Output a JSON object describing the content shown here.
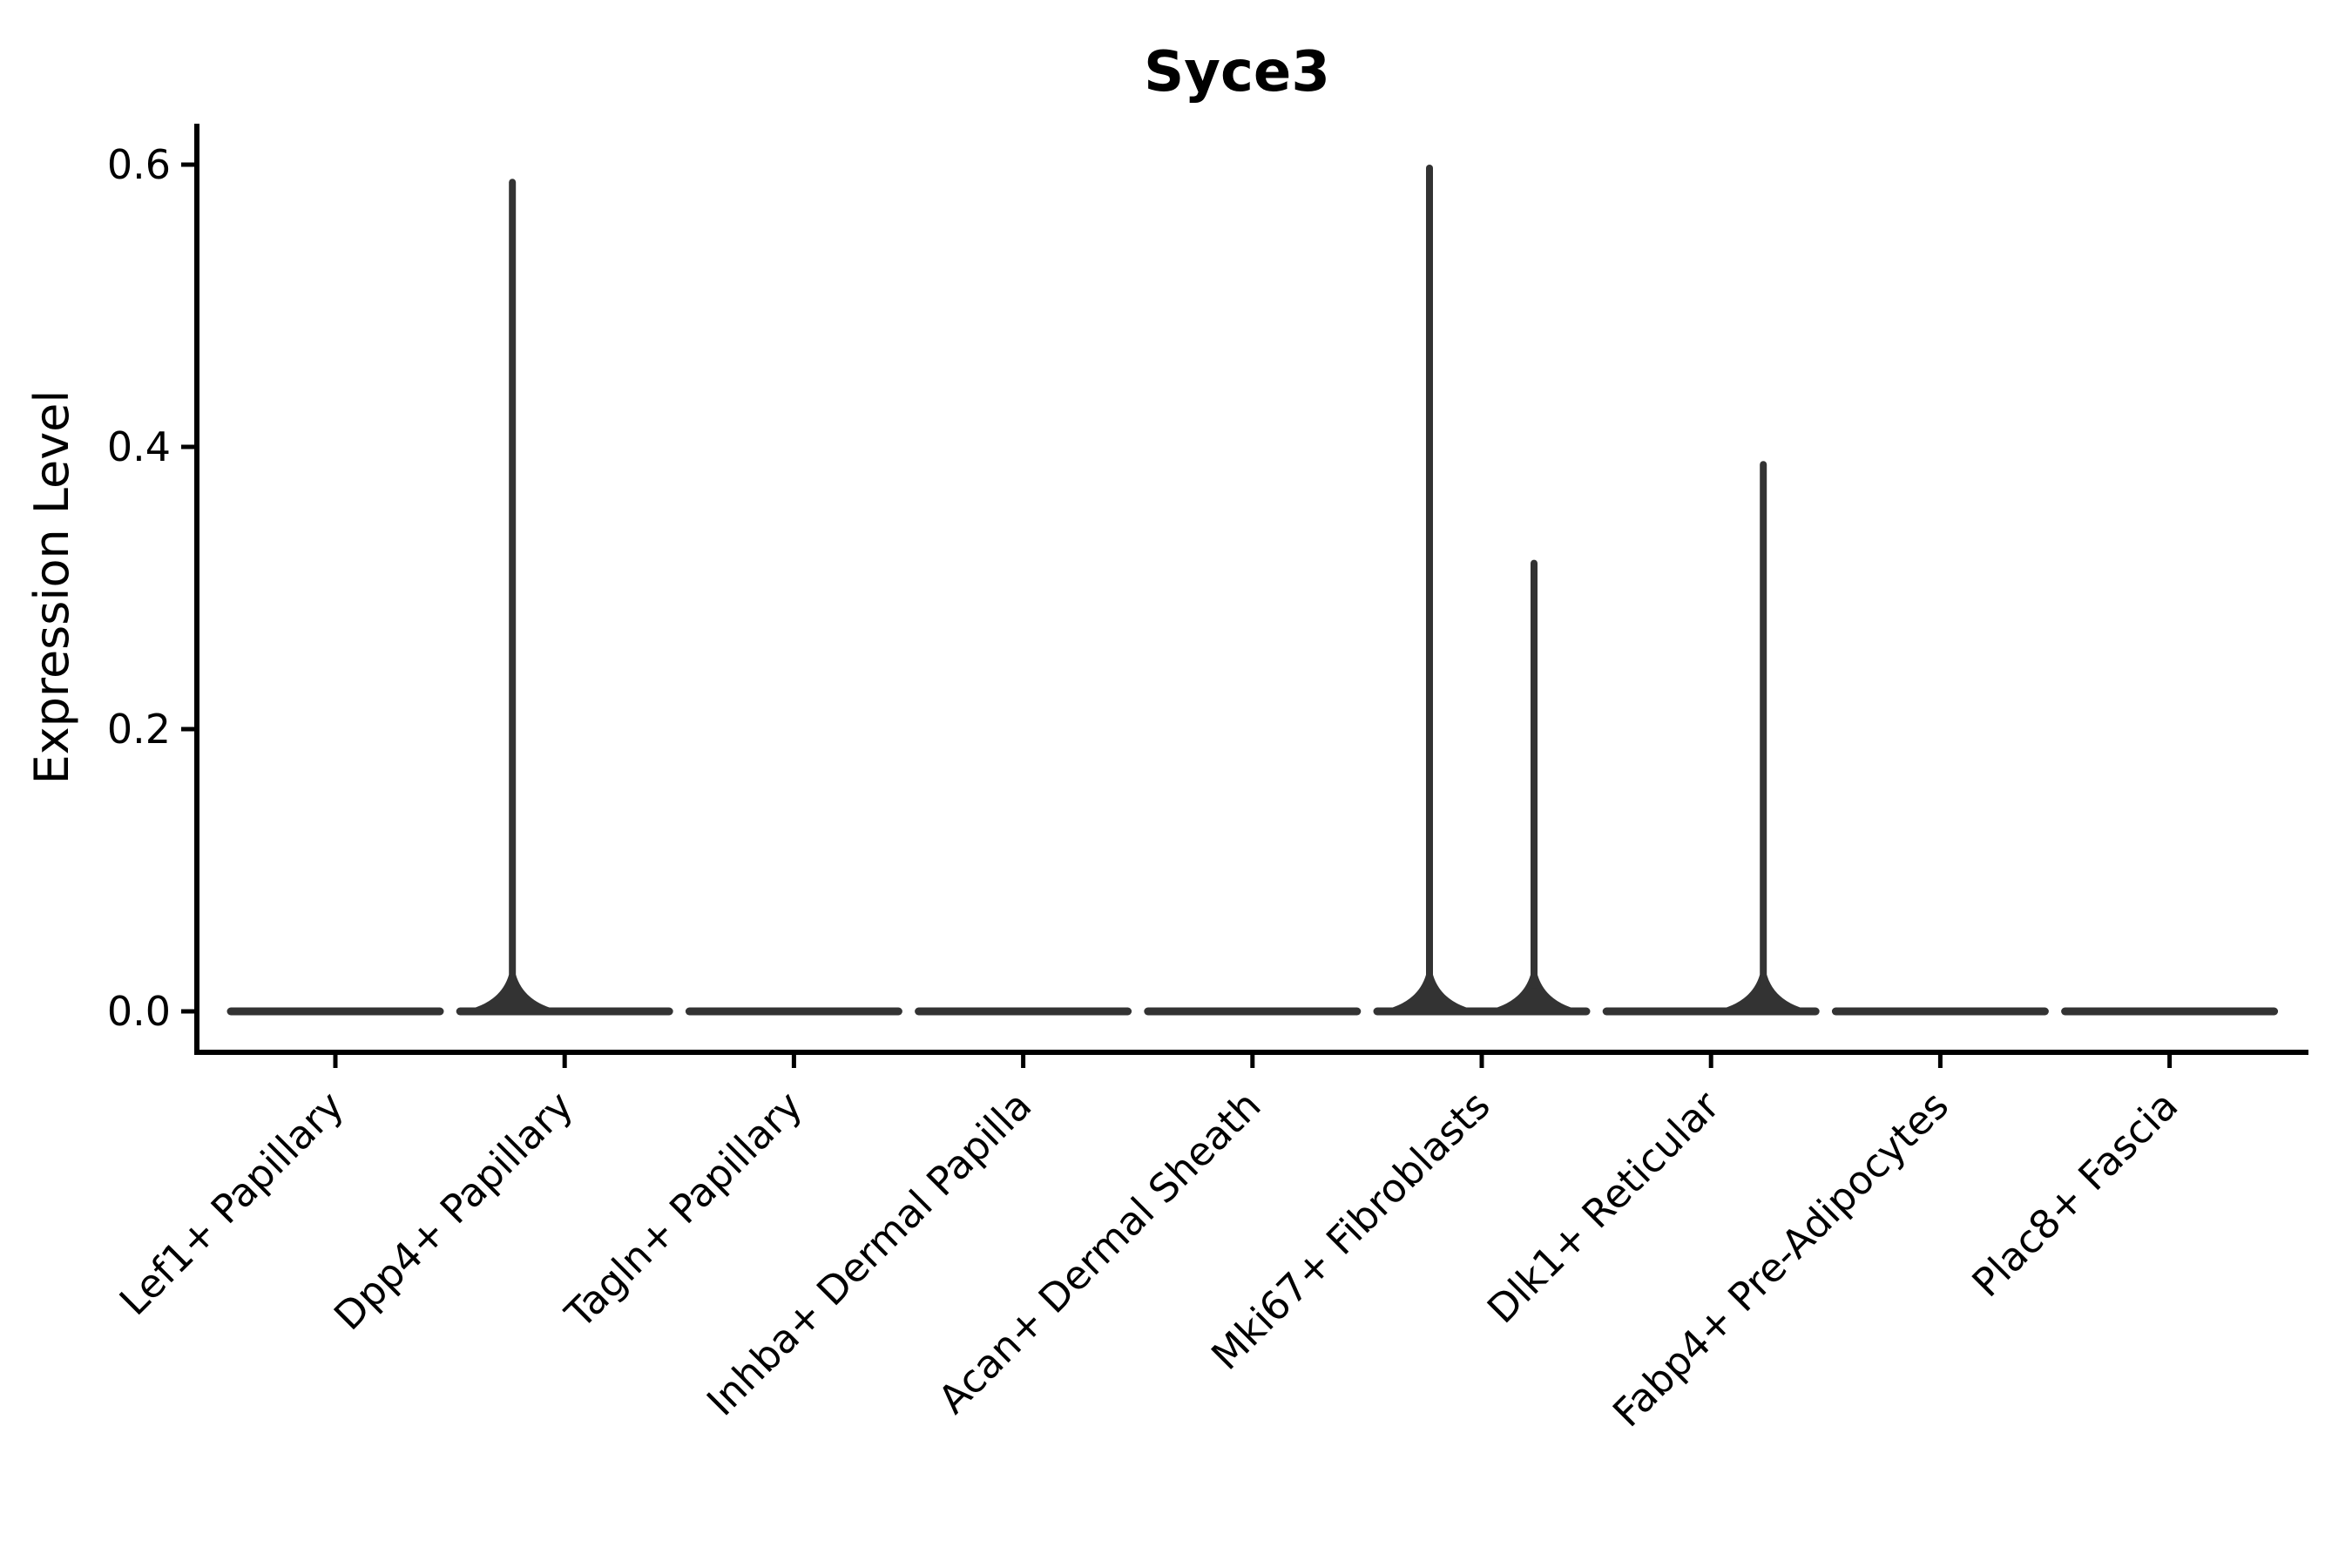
{
  "figure": {
    "title": "Syce3",
    "ylabel": "Expression Level"
  },
  "chart_data": {
    "type": "violin",
    "title": "Syce3",
    "xlabel": "",
    "ylabel": "Expression Level",
    "grid": false,
    "legend": false,
    "ylim": [
      -0.029,
      0.629
    ],
    "ytick_values": [
      0.0,
      0.2,
      0.4,
      0.6
    ],
    "yticks": [
      "0.0",
      "0.2",
      "0.4",
      "0.6"
    ],
    "categories": [
      "Lef1+ Papillary",
      "Dpp4+ Papillary",
      "Tagln+ Papillary",
      "Inhba+ Dermal Papilla",
      "Acan+ Dermal Sheath",
      "Mki67+ Fibroblasts",
      "Dlk1+ Reticular",
      "Fabp4+ Pre-Adipocytes",
      "Plac8+ Fascia"
    ],
    "violins": [
      {
        "category": "Lef1+ Papillary",
        "baseline": 0.0,
        "spikes": []
      },
      {
        "category": "Dpp4+ Papillary",
        "baseline": 0.0,
        "spikes": [
          {
            "side": "left",
            "max": 0.59
          }
        ]
      },
      {
        "category": "Tagln+ Papillary",
        "baseline": 0.0,
        "spikes": []
      },
      {
        "category": "Inhba+ Dermal Papilla",
        "baseline": 0.0,
        "spikes": []
      },
      {
        "category": "Acan+ Dermal Sheath",
        "baseline": 0.0,
        "spikes": []
      },
      {
        "category": "Mki67+ Fibroblasts",
        "baseline": 0.0,
        "spikes": [
          {
            "side": "left",
            "max": 0.6
          },
          {
            "side": "right",
            "max": 0.32
          }
        ]
      },
      {
        "category": "Dlk1+ Reticular",
        "baseline": 0.0,
        "spikes": [
          {
            "side": "right",
            "max": 0.39
          }
        ]
      },
      {
        "category": "Fabp4+ Pre-Adipocytes",
        "baseline": 0.0,
        "spikes": []
      },
      {
        "category": "Plac8+ Fascia",
        "baseline": 0.0,
        "spikes": []
      }
    ],
    "colors": {
      "violin": "#333333",
      "axis": "#000000",
      "text": "#000000",
      "background": "#ffffff"
    }
  }
}
